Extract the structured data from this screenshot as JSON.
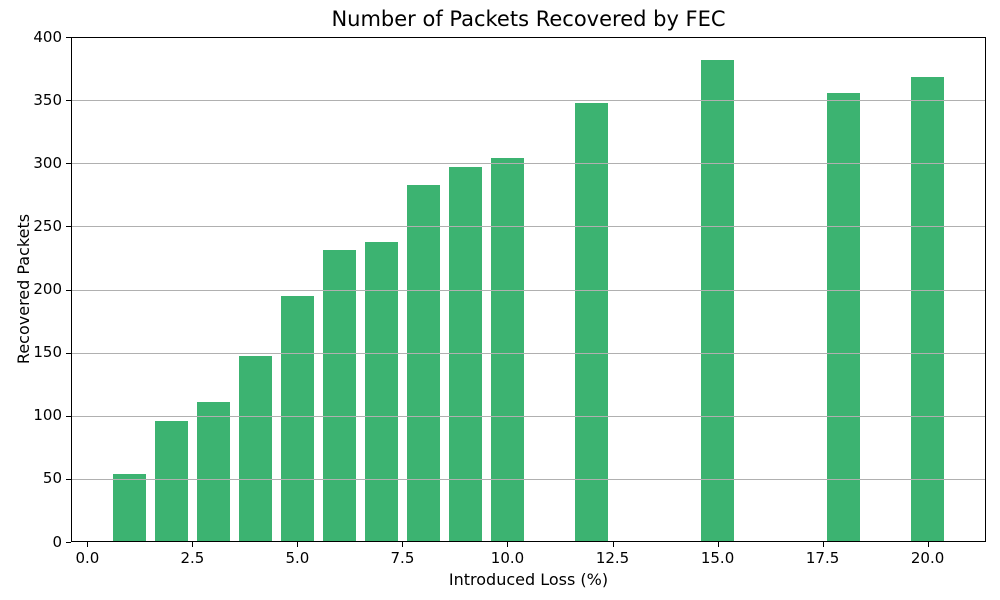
{
  "chart_data": {
    "type": "bar",
    "title": "Number of Packets Recovered by FEC",
    "xlabel": "Introduced Loss (%)",
    "ylabel": "Recovered Packets",
    "x": [
      1,
      2,
      3,
      4,
      5,
      6,
      7,
      8,
      9,
      10,
      12,
      15,
      18,
      20
    ],
    "values": [
      54,
      96,
      111,
      147,
      195,
      231,
      238,
      283,
      297,
      304,
      348,
      382,
      356,
      368
    ],
    "bar_width": 0.8,
    "bar_color": "#3cb371",
    "xlim": [
      -0.39,
      21.39
    ],
    "ylim": [
      0,
      400
    ],
    "xticks": [
      0,
      2.5,
      5,
      7.5,
      10,
      12.5,
      15,
      17.5,
      20
    ],
    "xtick_labels": [
      "0.0",
      "2.5",
      "5.0",
      "7.5",
      "10.0",
      "12.5",
      "15.0",
      "17.5",
      "20.0"
    ],
    "yticks": [
      0,
      50,
      100,
      150,
      200,
      250,
      300,
      350,
      400
    ],
    "ytick_labels": [
      "0",
      "50",
      "100",
      "150",
      "200",
      "250",
      "300",
      "350",
      "400"
    ],
    "grid": true,
    "grid_axis": "y",
    "grid_color": "#b0b0b0",
    "grid_above_bars": true,
    "legend": null,
    "background_color": "#ffffff",
    "spine_color": "#000000"
  }
}
